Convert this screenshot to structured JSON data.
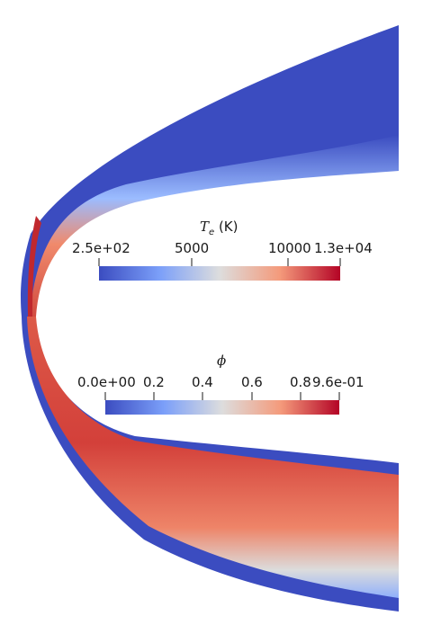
{
  "colorbars": [
    {
      "title_symbol": "T",
      "title_subscript": "e",
      "title_unit": " (K)",
      "tick_labels": [
        "2.5e+02",
        "5000",
        "10000",
        "1.3e+04"
      ],
      "colormap": "coolwarm"
    },
    {
      "title_symbol": "ϕ",
      "tick_labels": [
        "0.0e+00",
        "0.2",
        "0.4",
        "0.6",
        "0.8",
        "9.6e-01"
      ],
      "colormap": "coolwarm"
    }
  ],
  "colors": {
    "cold": "#3b4cc0",
    "neutral": "#dddddd",
    "hot": "#b40426",
    "background": "#ffffff"
  }
}
